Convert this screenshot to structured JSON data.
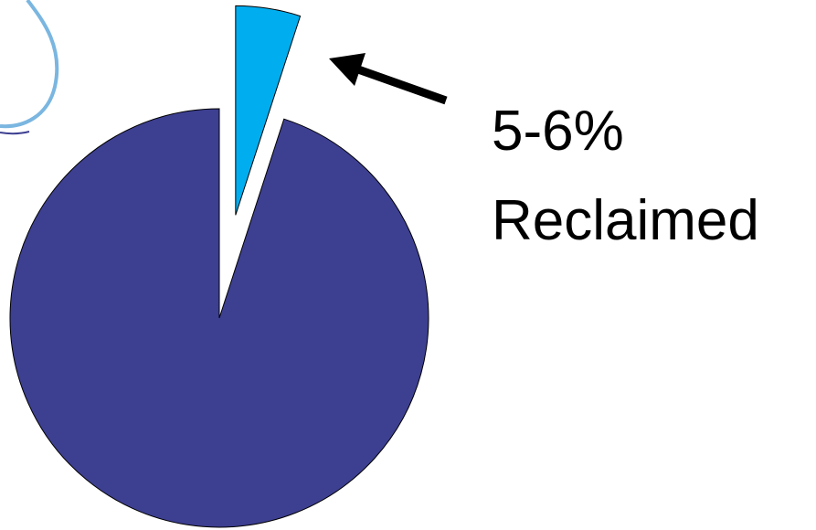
{
  "chart_data": {
    "type": "pie",
    "categories": [
      null,
      null
    ],
    "values": [
      5,
      95
    ],
    "colors": [
      "#00aeef",
      "#3d3f91"
    ],
    "exploded": [
      true,
      false
    ],
    "annotation": [
      "5-6%",
      "Reclaimed"
    ]
  }
}
